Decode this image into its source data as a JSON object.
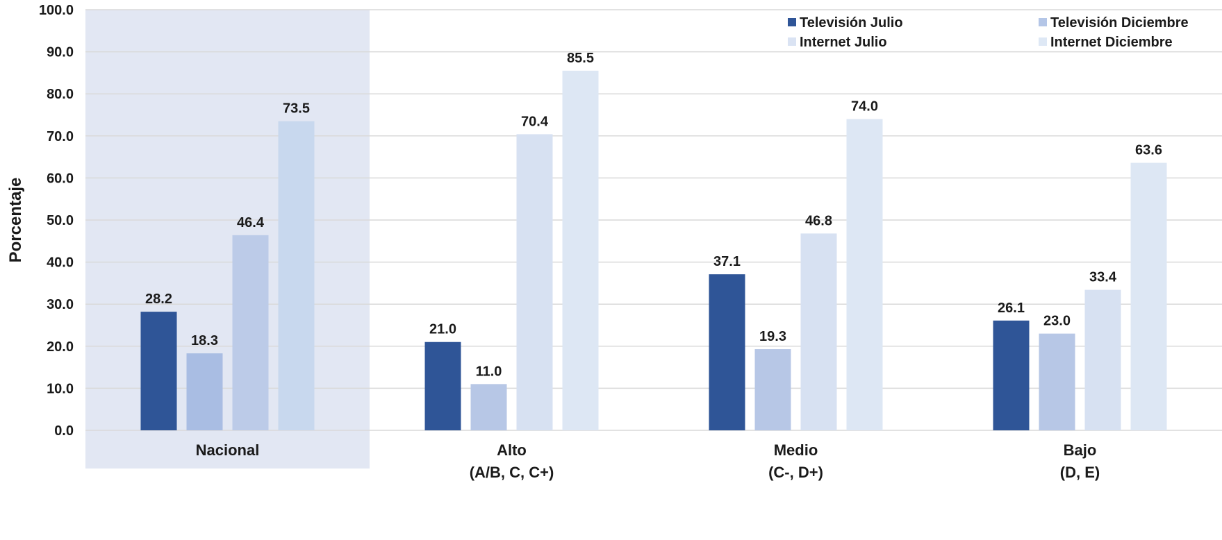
{
  "chart_data": {
    "type": "bar",
    "ylabel": "Porcentaje",
    "ylim": [
      0,
      100
    ],
    "ytick_step": 10,
    "ytick_labels": [
      "0.0",
      "10.0",
      "20.0",
      "30.0",
      "40.0",
      "50.0",
      "60.0",
      "70.0",
      "80.0",
      "90.0",
      "100.0"
    ],
    "grid": true,
    "legend_position": "top-right",
    "highlighted_category": "Nacional",
    "categories": [
      {
        "line1": "Nacional",
        "line2": ""
      },
      {
        "line1": "Alto",
        "line2": "(A/B, C, C+)"
      },
      {
        "line1": "Medio",
        "line2": "(C-, D+)"
      },
      {
        "line1": "Bajo",
        "line2": "(D, E)"
      }
    ],
    "series": [
      {
        "name": "Televisión  Julio",
        "values": [
          28.2,
          21.0,
          37.1,
          26.1
        ],
        "value_labels": [
          "28.2",
          "21.0",
          "37.1",
          "26.1"
        ]
      },
      {
        "name": "Televisión  Diciembre",
        "values": [
          18.3,
          11.0,
          19.3,
          23.0
        ],
        "value_labels": [
          "18.3",
          "11.0",
          "19.3",
          "23.0"
        ]
      },
      {
        "name": "Internet Julio",
        "values": [
          46.4,
          70.4,
          46.8,
          33.4
        ],
        "value_labels": [
          "46.4",
          "70.4",
          "46.8",
          "33.4"
        ]
      },
      {
        "name": "Internet Diciembre",
        "values": [
          73.5,
          85.5,
          74.0,
          63.6
        ],
        "value_labels": [
          "73.5",
          "85.5",
          "74.0",
          "63.6"
        ]
      }
    ],
    "colors": {
      "by_category": [
        [
          "#2f5597",
          "#a9bde3",
          "#bccbe8",
          "#c8d8ee"
        ],
        [
          "#2f5597",
          "#b7c7e6",
          "#d7e1f2",
          "#dde7f4"
        ],
        [
          "#2f5597",
          "#b7c7e6",
          "#d7e1f2",
          "#dde7f4"
        ],
        [
          "#2f5597",
          "#b7c7e6",
          "#d7e1f2",
          "#dde7f4"
        ]
      ],
      "legend": [
        "#2f5597",
        "#b4c6e7",
        "#dae3f3",
        "#dee8f5"
      ],
      "highlight_band": "#e2e7f3",
      "grid": "#d9d9d9"
    }
  }
}
